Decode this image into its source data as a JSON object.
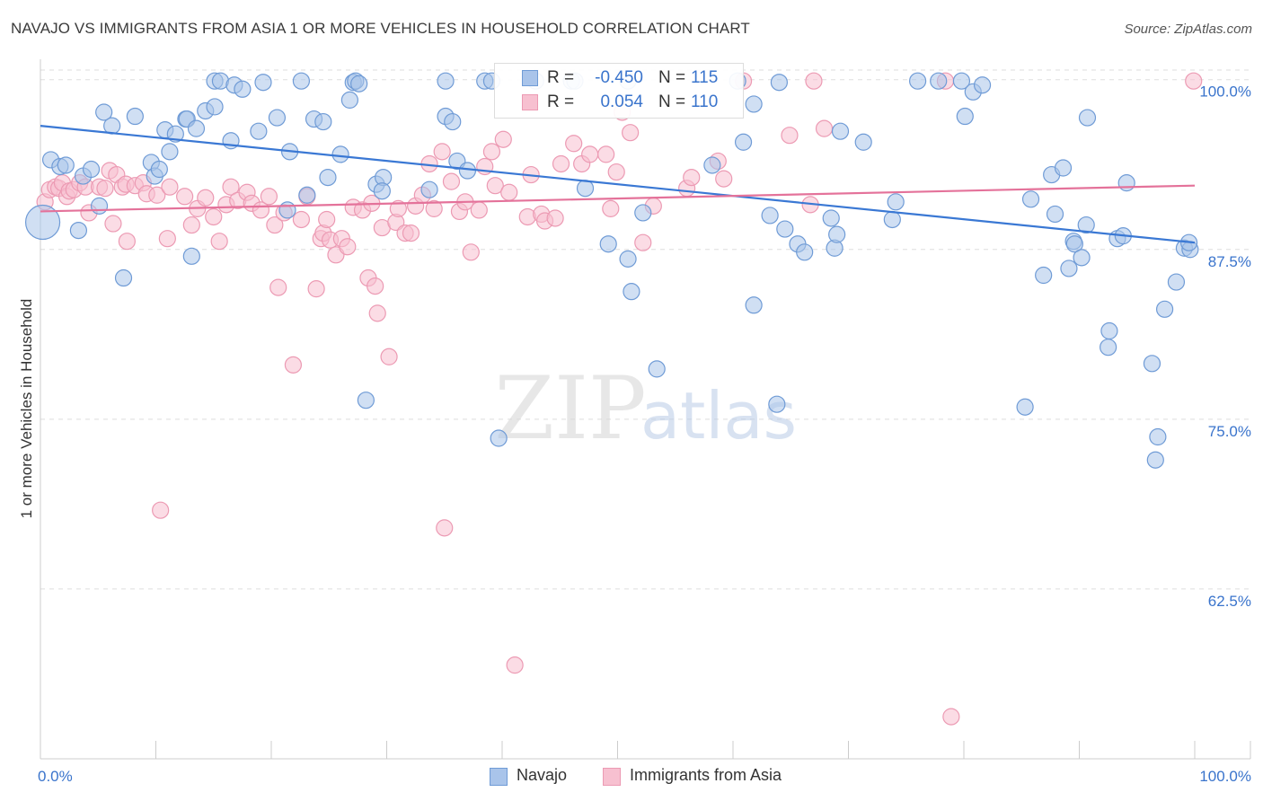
{
  "title": "NAVAJO VS IMMIGRANTS FROM ASIA 1 OR MORE VEHICLES IN HOUSEHOLD CORRELATION CHART",
  "source": "Source: ZipAtlas.com",
  "watermark": {
    "zip": "ZIP",
    "atlas": "atlas"
  },
  "colors": {
    "blue_fill": "#a9c4ea",
    "blue_stroke": "#6f9bd6",
    "blue_line": "#3a78d4",
    "pink_fill": "#f7c0d0",
    "pink_stroke": "#ec9ab3",
    "pink_line": "#e4729a",
    "axis_text": "#3a74cc",
    "grid": "#dddddd"
  },
  "legend": {
    "rows": [
      {
        "r_label": "R =",
        "r_value": "-0.450",
        "n_label": "N =",
        "n_value": "115"
      },
      {
        "r_label": "R =",
        "r_value": "0.054",
        "n_label": "N =",
        "n_value": "110"
      }
    ]
  },
  "bottom_legend": [
    "Navajo",
    "Immigrants from Asia"
  ],
  "chart_data": {
    "type": "scatter",
    "title": "NAVAJO VS IMMIGRANTS FROM ASIA 1 OR MORE VEHICLES IN HOUSEHOLD CORRELATION CHART",
    "xlabel": "",
    "ylabel": "1 or more Vehicles in Household",
    "xlim": [
      0,
      100
    ],
    "ylim": [
      50,
      101.5
    ],
    "x_tick_labels": [
      "0.0%",
      "100.0%"
    ],
    "y_ticks": [
      {
        "value": 62.5,
        "label": "62.5%"
      },
      {
        "value": 75.0,
        "label": "75.0%"
      },
      {
        "value": 87.5,
        "label": "87.5%"
      },
      {
        "value": 100.0,
        "label": "100.0%"
      }
    ],
    "series": [
      {
        "name": "Navajo",
        "R": -0.45,
        "N": 115,
        "trend": {
          "x": [
            0,
            100
          ],
          "y": [
            96.6,
            88.0
          ]
        },
        "x": [
          0.2,
          0.9,
          1.7,
          2.2,
          3.3,
          3.7,
          4.4,
          5.1,
          5.5,
          6.2,
          7.2,
          8.2,
          9.6,
          9.9,
          10.3,
          10.8,
          11.2,
          11.7,
          12.6,
          12.7,
          13.1,
          13.5,
          14.3,
          15.1,
          15.1,
          15.6,
          16.5,
          16.8,
          17.5,
          18.9,
          19.3,
          20.5,
          21.4,
          21.6,
          22.6,
          23.1,
          23.7,
          24.5,
          24.9,
          26.0,
          26.8,
          27.1,
          27.3,
          27.6,
          28.2,
          29.1,
          29.7,
          29.6,
          33.7,
          35.1,
          35.1,
          35.7,
          36.1,
          37.0,
          38.5,
          39.1,
          39.7,
          42.9,
          46.0,
          46.3,
          47.2,
          49.2,
          50.9,
          50.9,
          51.2,
          52.2,
          53.4,
          58.2,
          60.4,
          60.9,
          61.8,
          61.8,
          63.2,
          63.8,
          64.0,
          64.5,
          65.6,
          66.2,
          68.5,
          68.8,
          69.0,
          69.3,
          71.3,
          73.8,
          74.1,
          76.0,
          77.8,
          79.8,
          80.1,
          80.8,
          81.6,
          85.3,
          85.8,
          86.9,
          87.6,
          87.9,
          88.6,
          89.1,
          89.5,
          89.6,
          90.2,
          90.6,
          90.7,
          92.5,
          92.6,
          93.3,
          93.8,
          94.1,
          96.3,
          96.6,
          96.8,
          97.4,
          98.4,
          99.1,
          99.6,
          99.5
        ],
        "y": [
          89.5,
          94.1,
          93.6,
          93.7,
          88.9,
          92.9,
          93.4,
          90.7,
          97.6,
          96.6,
          85.4,
          97.3,
          93.9,
          92.9,
          93.4,
          96.3,
          94.7,
          96.0,
          97.1,
          97.1,
          87.0,
          96.4,
          97.7,
          98.0,
          99.9,
          99.9,
          95.5,
          99.6,
          99.3,
          96.2,
          99.8,
          97.2,
          90.4,
          94.7,
          99.9,
          91.5,
          97.1,
          96.9,
          92.8,
          94.5,
          98.5,
          99.8,
          99.9,
          99.7,
          76.4,
          92.3,
          92.8,
          91.8,
          91.9,
          97.3,
          99.9,
          96.9,
          94.0,
          93.3,
          99.9,
          99.9,
          73.6,
          99.9,
          99.9,
          99.9,
          92.0,
          87.9,
          99.9,
          86.8,
          84.4,
          90.2,
          78.7,
          93.7,
          99.9,
          95.4,
          98.2,
          83.4,
          90.0,
          76.1,
          99.8,
          89.0,
          87.9,
          87.3,
          89.8,
          87.6,
          88.6,
          96.2,
          95.4,
          89.7,
          91.0,
          99.9,
          99.9,
          99.9,
          97.3,
          99.1,
          99.6,
          75.9,
          91.2,
          85.6,
          93.0,
          90.1,
          93.5,
          86.1,
          88.1,
          87.9,
          86.9,
          89.3,
          97.2,
          80.3,
          81.5,
          88.3,
          88.5,
          92.4,
          79.1,
          72.0,
          73.7,
          83.1,
          85.1,
          87.6,
          87.5,
          88.0
        ]
      },
      {
        "name": "Immigrants from Asia",
        "R": 0.054,
        "N": 110,
        "trend": {
          "x": [
            0,
            100
          ],
          "y": [
            90.3,
            92.2
          ]
        },
        "x": [
          0.4,
          0.8,
          1.3,
          1.6,
          1.9,
          2.3,
          2.5,
          2.9,
          3.4,
          3.9,
          4.2,
          5.1,
          5.6,
          6.0,
          6.3,
          6.6,
          7.1,
          7.4,
          7.5,
          8.2,
          8.9,
          9.2,
          10.1,
          10.4,
          11.0,
          11.2,
          12.5,
          13.1,
          13.6,
          14.3,
          15.0,
          15.5,
          16.1,
          16.5,
          17.1,
          17.9,
          18.3,
          19.1,
          19.8,
          20.3,
          20.6,
          21.1,
          21.9,
          22.6,
          23.1,
          23.9,
          24.3,
          24.5,
          24.8,
          25.1,
          25.6,
          26.1,
          26.6,
          27.1,
          27.9,
          28.4,
          28.7,
          29.0,
          29.2,
          29.6,
          30.2,
          30.8,
          31.0,
          31.6,
          32.1,
          32.5,
          33.1,
          33.7,
          34.1,
          34.8,
          35.0,
          35.6,
          36.3,
          36.8,
          37.3,
          38.0,
          38.5,
          39.1,
          39.4,
          40.1,
          40.6,
          41.1,
          42.2,
          42.5,
          43.4,
          43.7,
          44.6,
          45.1,
          46.2,
          46.9,
          47.6,
          49.0,
          49.4,
          49.9,
          50.4,
          51.1,
          52.2,
          53.1,
          56.0,
          56.4,
          58.7,
          59.2,
          60.9,
          64.9,
          66.7,
          67.0,
          67.9,
          78.4,
          78.9,
          99.9
        ],
        "y": [
          91.0,
          91.9,
          92.1,
          92.0,
          92.4,
          91.4,
          91.8,
          91.9,
          92.4,
          92.1,
          90.2,
          92.1,
          92.0,
          93.3,
          89.4,
          93.0,
          92.1,
          92.3,
          88.1,
          92.2,
          92.4,
          91.6,
          91.5,
          68.3,
          88.3,
          92.1,
          91.4,
          89.3,
          90.5,
          91.3,
          89.9,
          88.1,
          90.8,
          92.1,
          91.1,
          91.7,
          90.9,
          90.4,
          91.4,
          89.3,
          84.7,
          90.2,
          79.0,
          89.7,
          91.4,
          84.6,
          88.3,
          88.7,
          89.7,
          88.2,
          87.1,
          88.3,
          87.7,
          90.6,
          90.4,
          85.4,
          90.9,
          84.8,
          82.8,
          89.1,
          79.6,
          89.5,
          90.5,
          88.7,
          88.7,
          90.7,
          91.5,
          93.8,
          90.5,
          94.7,
          67.0,
          92.5,
          90.3,
          91.0,
          87.3,
          90.4,
          93.6,
          94.7,
          92.2,
          95.6,
          91.7,
          56.9,
          89.9,
          93.0,
          90.1,
          89.6,
          89.8,
          93.8,
          95.3,
          93.8,
          94.5,
          94.5,
          90.5,
          93.2,
          97.6,
          96.1,
          88.0,
          90.7,
          92.0,
          92.8,
          94.0,
          92.7,
          99.9,
          95.9,
          90.8,
          99.9,
          96.4,
          99.9,
          53.1,
          99.9
        ]
      }
    ]
  }
}
